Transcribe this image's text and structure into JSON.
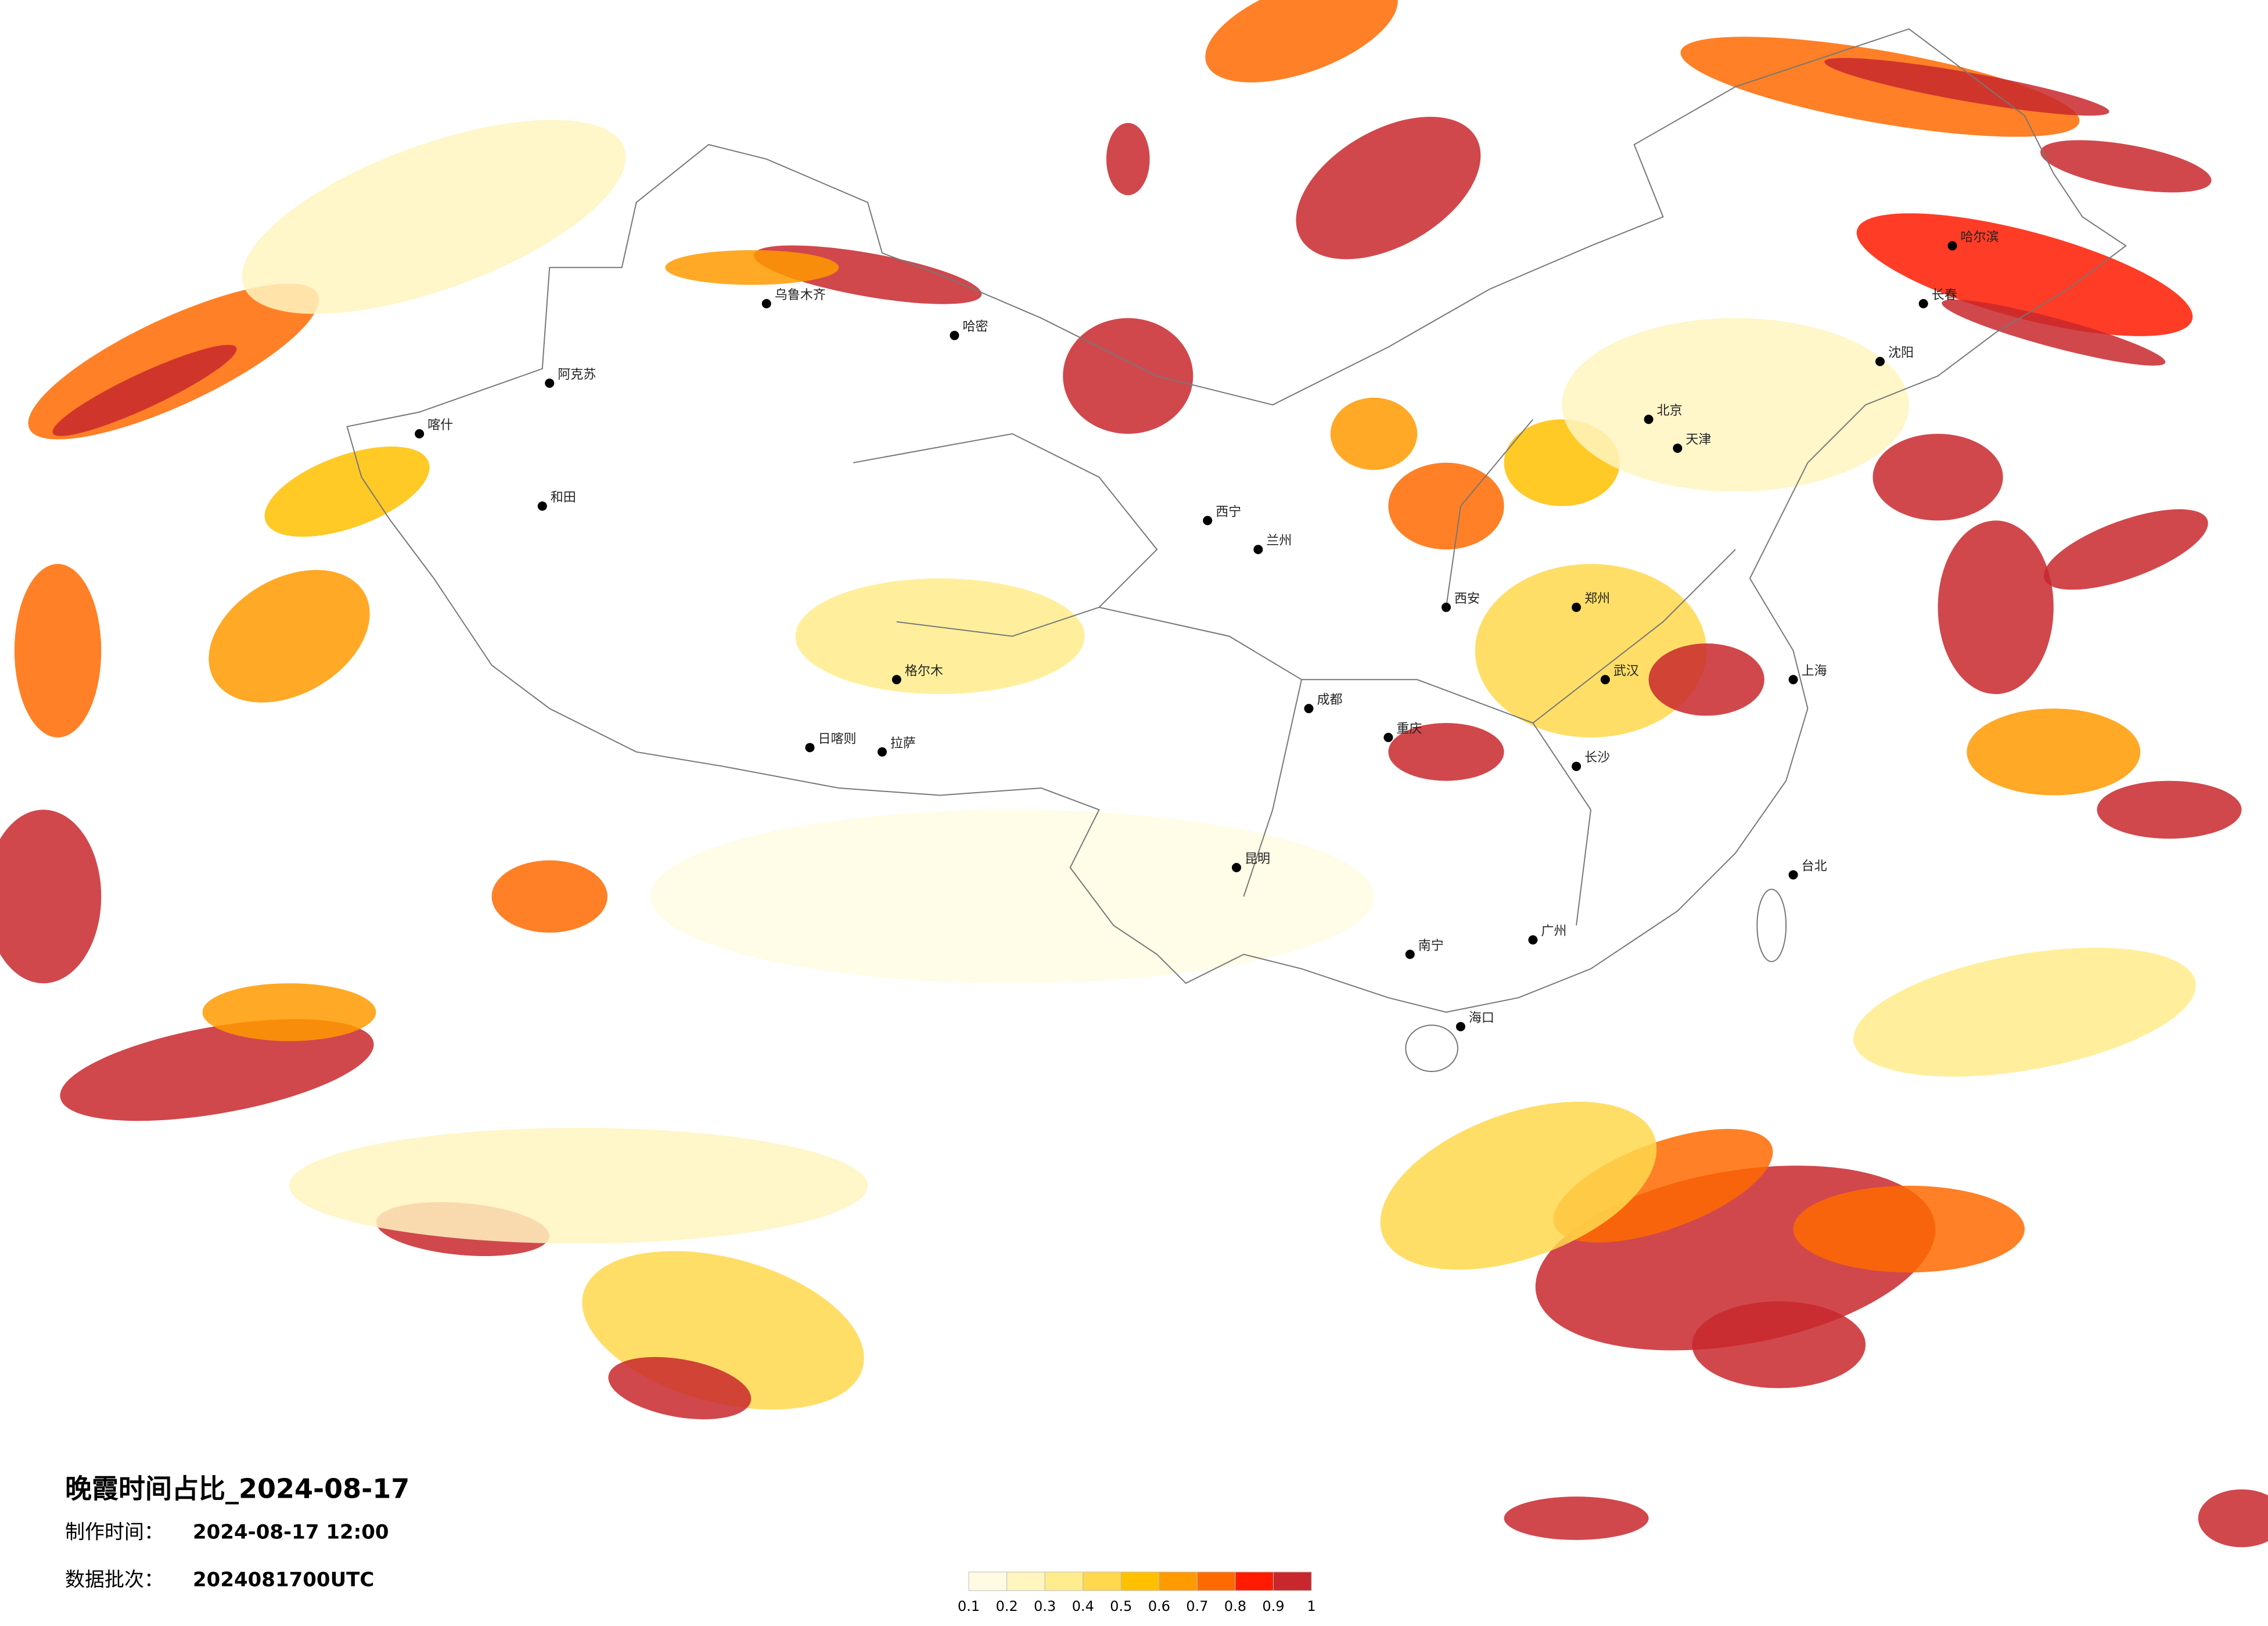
{
  "header": {
    "title": "晚霞时间占比_2024-08-17",
    "made_time_label": "制作时间：",
    "made_time": "2024-08-17 12:00",
    "batch_label": "数据批次：",
    "batch": "2024081700UTC"
  },
  "legend": {
    "ticks": [
      0.1,
      0.2,
      0.3,
      0.4,
      0.5,
      0.6,
      0.7,
      0.8,
      0.9,
      1
    ],
    "colors": [
      "#fffbe3",
      "#fff5bf",
      "#ffec8c",
      "#ffd84d",
      "#ffc000",
      "#ff9a00",
      "#ff6a00",
      "#ff1a00",
      "#c8282d"
    ]
  },
  "cities": [
    {
      "name": "喀什"
    },
    {
      "name": "和田"
    },
    {
      "name": "阿克苏"
    },
    {
      "name": "乌鲁木齐"
    },
    {
      "name": "哈密"
    },
    {
      "name": "拉萨"
    },
    {
      "name": "日喀则"
    },
    {
      "name": "格尔木"
    },
    {
      "name": "兰州"
    },
    {
      "name": "西宁"
    },
    {
      "name": "成都"
    },
    {
      "name": "重庆"
    },
    {
      "name": "昆明"
    },
    {
      "name": "西安"
    },
    {
      "name": "郑州"
    },
    {
      "name": "武汉"
    },
    {
      "name": "长沙"
    },
    {
      "name": "北京"
    },
    {
      "name": "天津"
    },
    {
      "name": "上海"
    },
    {
      "name": "广州"
    },
    {
      "name": "南宁"
    },
    {
      "name": "海口"
    },
    {
      "name": "哈尔滨"
    },
    {
      "name": "长春"
    },
    {
      "name": "沈阳"
    },
    {
      "name": "台北"
    }
  ]
}
